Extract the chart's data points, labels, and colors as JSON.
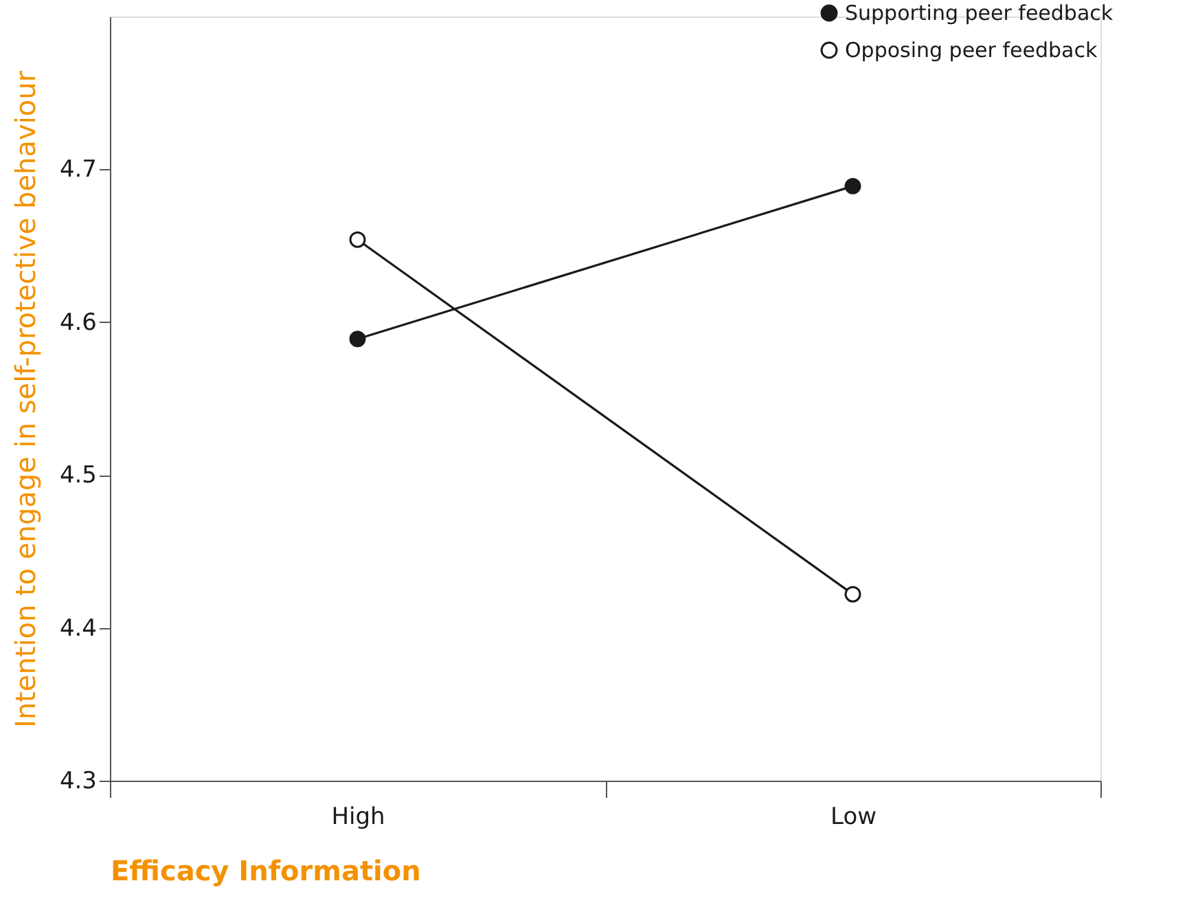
{
  "chart_data": {
    "type": "line",
    "xlabel": "Efficacy Information",
    "ylabel": "Intention to engage in self-protective behaviour",
    "categories": [
      "High",
      "Low"
    ],
    "series": [
      {
        "name": "Supporting peer feedback",
        "color": "#1a1a1a",
        "values": [
          4.589,
          4.689
        ]
      },
      {
        "name": "Opposing peer feedback",
        "color": "#1a1a1a",
        "values": [
          4.654,
          4.422
        ]
      }
    ],
    "ylim": [
      4.3,
      4.8
    ],
    "yticks": [
      4.3,
      4.4,
      4.5,
      4.6,
      4.7
    ],
    "grid": false,
    "legend": "top right",
    "marker": "circle",
    "line_style": "solid"
  }
}
